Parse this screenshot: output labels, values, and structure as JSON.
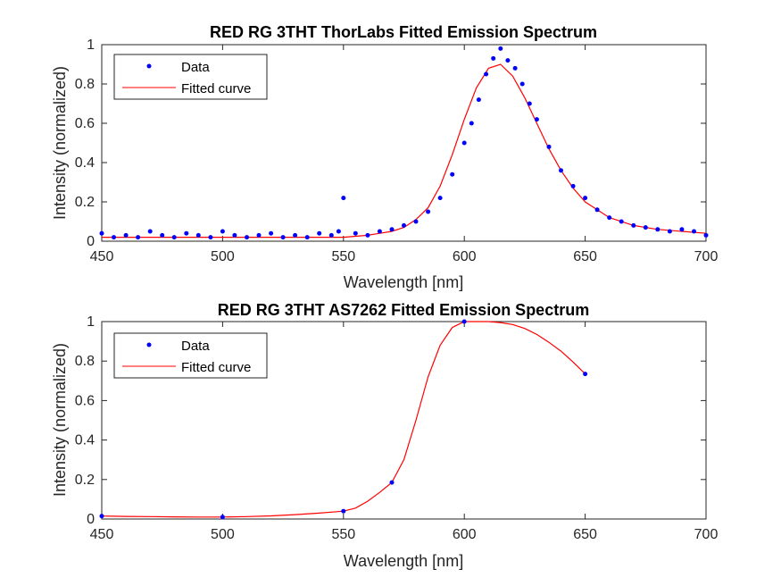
{
  "chart_data": [
    {
      "type": "scatter",
      "title": "RED RG 3THT ThorLabs Fitted Emission Spectrum",
      "xlabel": "Wavelength [nm]",
      "ylabel": "Intensity (normalized)",
      "xlim": [
        450,
        700
      ],
      "ylim": [
        0,
        1
      ],
      "xticks": [
        450,
        500,
        550,
        600,
        650,
        700
      ],
      "yticks": [
        0,
        0.2,
        0.4,
        0.6,
        0.8,
        1
      ],
      "xtick_labels": [
        "450",
        "500",
        "550",
        "600",
        "650",
        "700"
      ],
      "ytick_labels": [
        "0",
        "0.2",
        "0.4",
        "0.6",
        "0.8",
        "1"
      ],
      "grid": false,
      "legend_position": "top-left",
      "series": [
        {
          "name": "Data",
          "kind": "markers",
          "color": "#0000ff",
          "x": [
            450,
            455,
            460,
            465,
            470,
            475,
            480,
            485,
            490,
            495,
            500,
            505,
            510,
            515,
            520,
            525,
            530,
            535,
            540,
            545,
            548,
            550,
            555,
            560,
            565,
            570,
            575,
            580,
            585,
            590,
            595,
            600,
            603,
            606,
            609,
            612,
            615,
            618,
            621,
            624,
            627,
            630,
            635,
            640,
            645,
            650,
            655,
            660,
            665,
            670,
            675,
            680,
            685,
            690,
            695,
            700
          ],
          "y": [
            0.04,
            0.02,
            0.03,
            0.02,
            0.05,
            0.03,
            0.02,
            0.04,
            0.03,
            0.02,
            0.05,
            0.03,
            0.02,
            0.03,
            0.04,
            0.02,
            0.03,
            0.02,
            0.04,
            0.03,
            0.05,
            0.22,
            0.04,
            0.03,
            0.05,
            0.06,
            0.08,
            0.1,
            0.15,
            0.22,
            0.34,
            0.5,
            0.6,
            0.72,
            0.85,
            0.93,
            0.98,
            0.92,
            0.88,
            0.8,
            0.7,
            0.62,
            0.48,
            0.36,
            0.28,
            0.22,
            0.16,
            0.12,
            0.1,
            0.08,
            0.07,
            0.06,
            0.05,
            0.06,
            0.05,
            0.03
          ]
        },
        {
          "name": "Fitted curve",
          "kind": "line",
          "color": "#ff0000",
          "x": [
            450,
            460,
            470,
            480,
            490,
            500,
            510,
            520,
            530,
            540,
            550,
            560,
            565,
            570,
            575,
            580,
            585,
            590,
            595,
            600,
            605,
            610,
            615,
            620,
            625,
            630,
            635,
            640,
            645,
            650,
            660,
            670,
            680,
            690,
            700
          ],
          "y": [
            0.02,
            0.02,
            0.02,
            0.02,
            0.02,
            0.02,
            0.02,
            0.02,
            0.02,
            0.02,
            0.02,
            0.03,
            0.04,
            0.05,
            0.07,
            0.11,
            0.17,
            0.28,
            0.44,
            0.62,
            0.78,
            0.88,
            0.9,
            0.84,
            0.73,
            0.6,
            0.47,
            0.36,
            0.27,
            0.2,
            0.12,
            0.08,
            0.06,
            0.05,
            0.04
          ]
        }
      ]
    },
    {
      "type": "scatter",
      "title": "RED RG 3THT AS7262 Fitted Emission Spectrum",
      "xlabel": "Wavelength [nm]",
      "ylabel": "Intensity (normalized)",
      "xlim": [
        450,
        700
      ],
      "ylim": [
        0,
        1
      ],
      "xticks": [
        450,
        500,
        550,
        600,
        650,
        700
      ],
      "yticks": [
        0,
        0.2,
        0.4,
        0.6,
        0.8,
        1
      ],
      "xtick_labels": [
        "450",
        "500",
        "550",
        "600",
        "650",
        "700"
      ],
      "ytick_labels": [
        "0",
        "0.2",
        "0.4",
        "0.6",
        "0.8",
        "1"
      ],
      "grid": false,
      "legend_position": "top-left",
      "series": [
        {
          "name": "Data",
          "kind": "markers",
          "color": "#0000ff",
          "x": [
            450,
            500,
            550,
            570,
            600,
            650
          ],
          "y": [
            0.015,
            0.01,
            0.04,
            0.185,
            1.0,
            0.735
          ]
        },
        {
          "name": "Fitted curve",
          "kind": "line",
          "color": "#ff0000",
          "x": [
            450,
            460,
            470,
            480,
            490,
            500,
            510,
            520,
            530,
            540,
            550,
            555,
            560,
            565,
            570,
            575,
            580,
            585,
            590,
            595,
            600,
            605,
            610,
            615,
            620,
            625,
            630,
            635,
            640,
            645,
            650
          ],
          "y": [
            0.015,
            0.013,
            0.012,
            0.011,
            0.01,
            0.01,
            0.012,
            0.016,
            0.022,
            0.03,
            0.04,
            0.055,
            0.09,
            0.135,
            0.185,
            0.3,
            0.5,
            0.72,
            0.88,
            0.97,
            1.0,
            1.0,
            1.0,
            0.995,
            0.985,
            0.965,
            0.935,
            0.895,
            0.85,
            0.795,
            0.735
          ]
        }
      ]
    }
  ]
}
